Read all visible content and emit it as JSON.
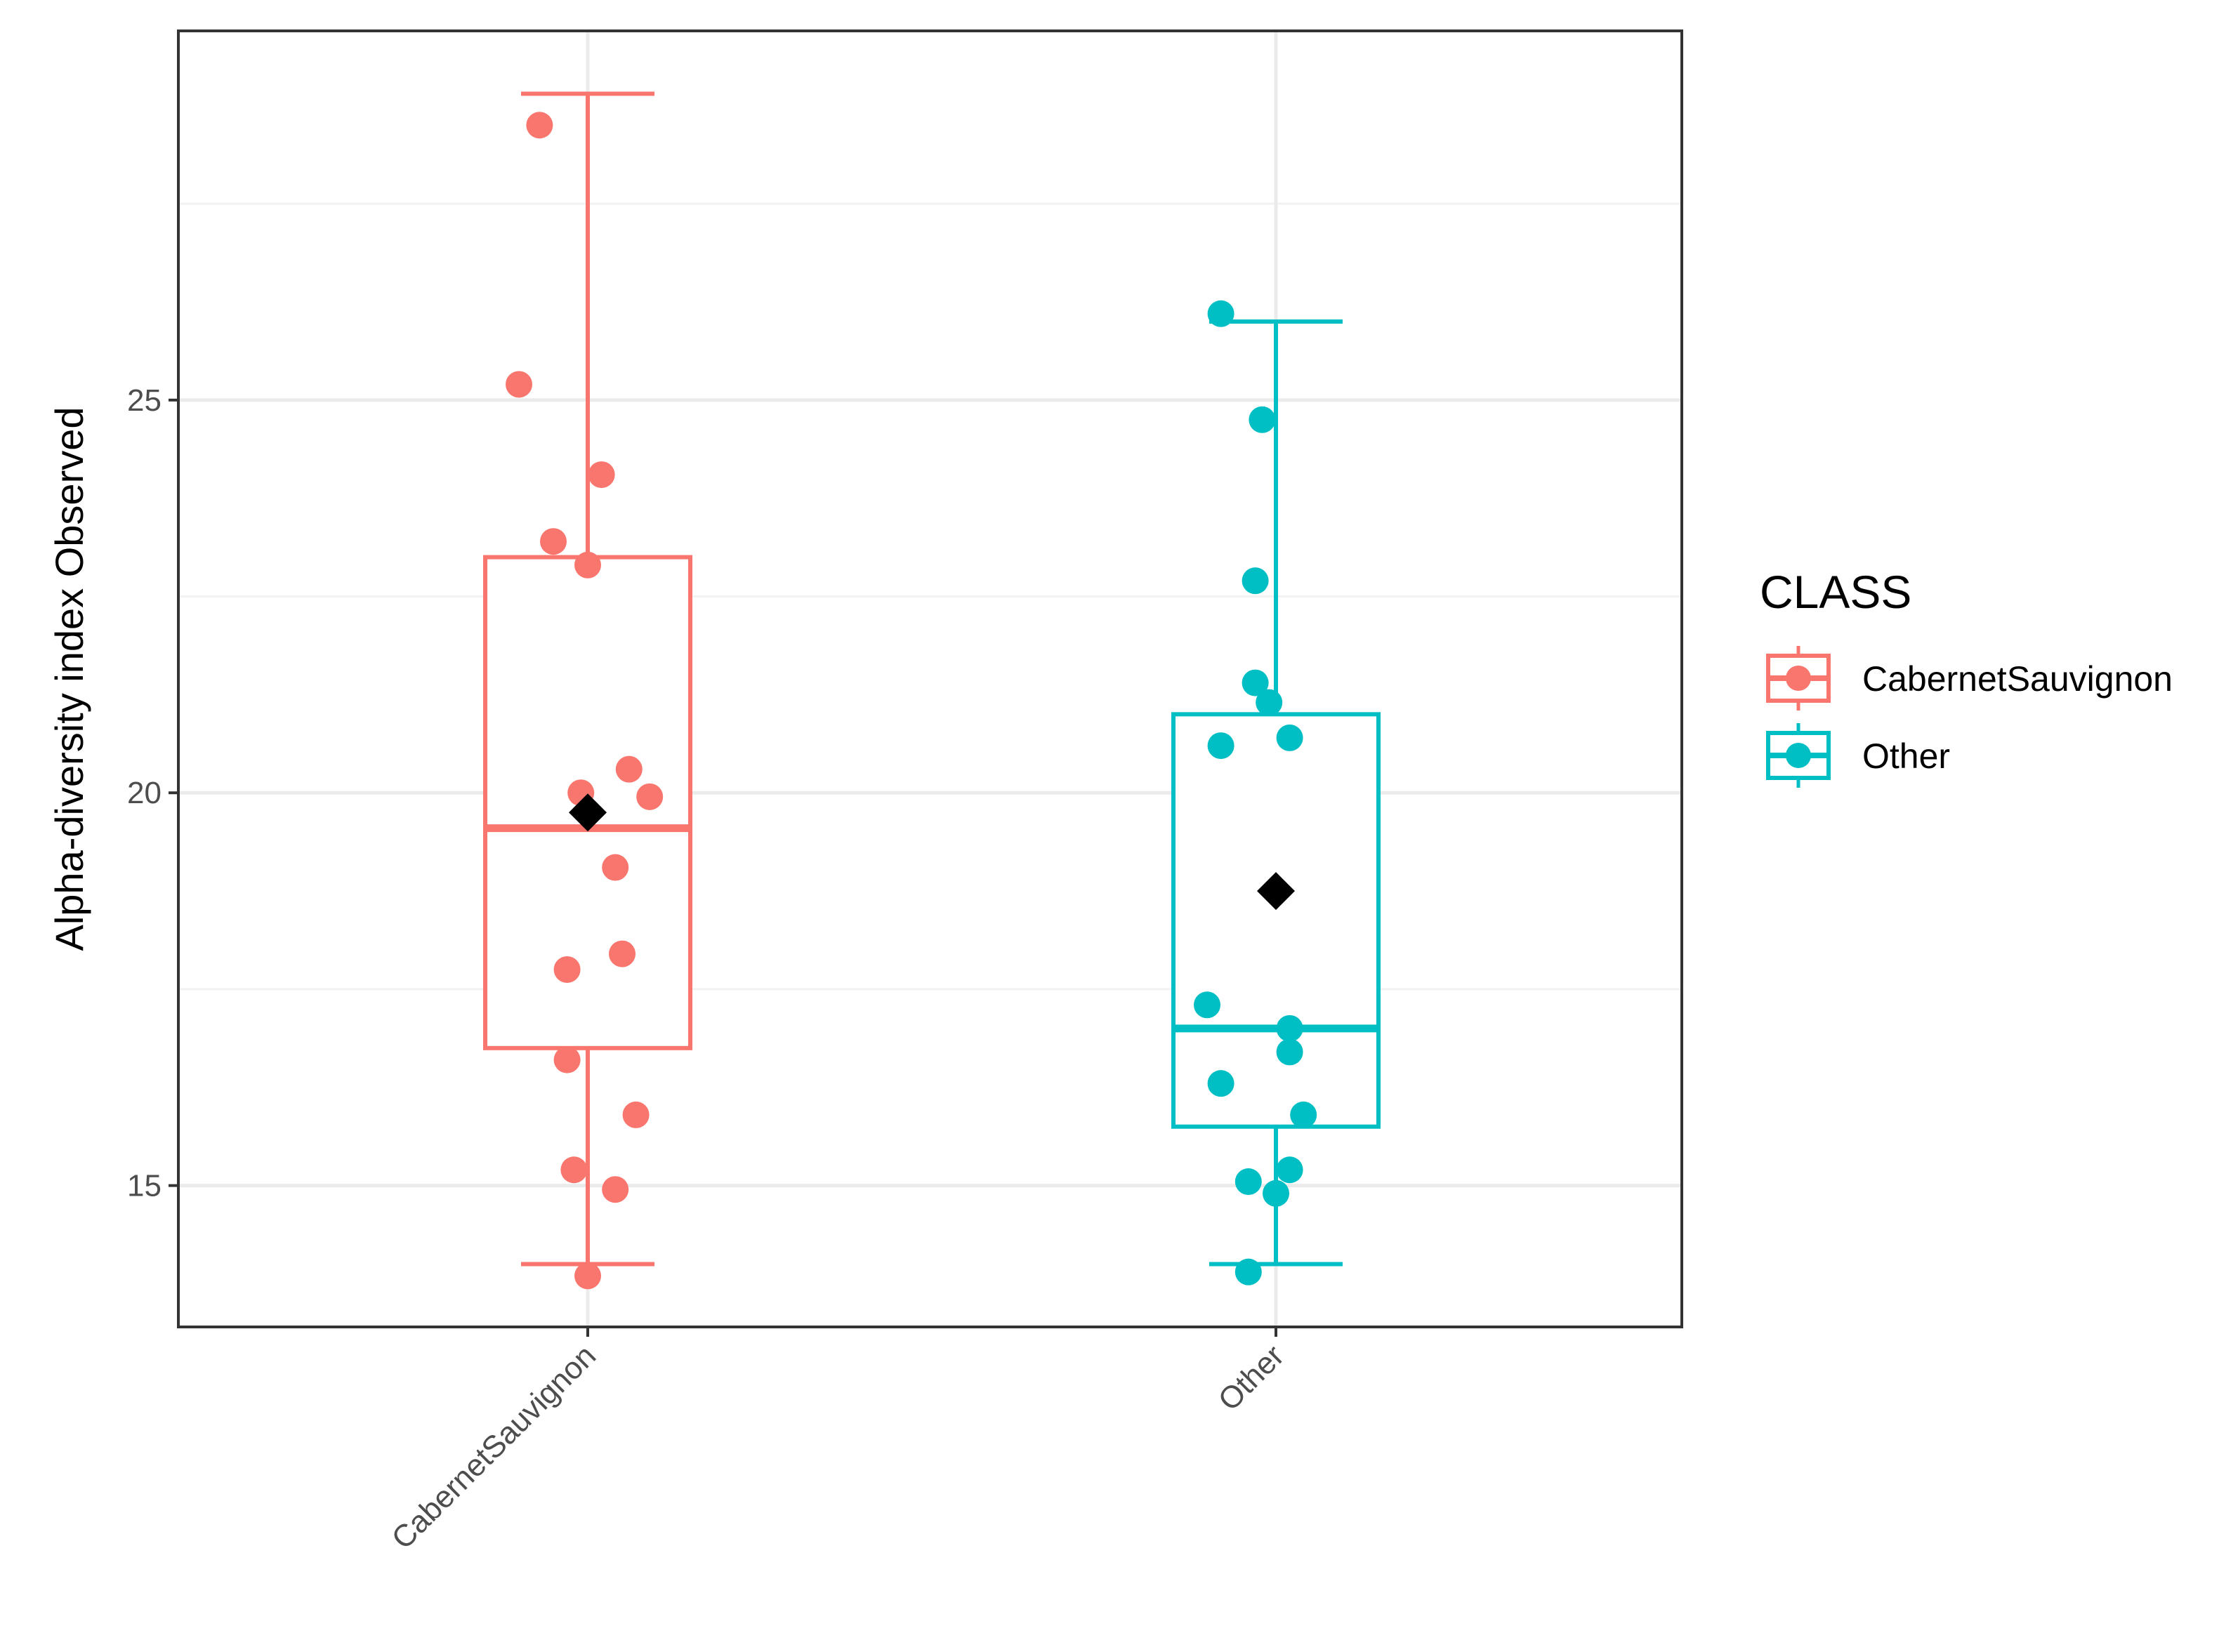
{
  "chart_data": {
    "type": "box",
    "title": "",
    "xlabel": "",
    "ylabel": "Alpha-diversity index Observed",
    "ylim": [
      13.2,
      29.7
    ],
    "yticks": [
      15,
      20,
      25
    ],
    "ytick_labels": [
      "15",
      "20",
      "25"
    ],
    "categories": [
      "CabernetSauvignon",
      "Other"
    ],
    "grid": true,
    "legend": {
      "title": "CLASS",
      "placement": "right",
      "entries": [
        "CabernetSauvignon",
        "Other"
      ]
    },
    "series": [
      {
        "name": "CabernetSauvignon",
        "color": "#F8766D",
        "whisker_low": 14.0,
        "q1": 16.75,
        "median": 19.55,
        "q3": 23.0,
        "whisker_high": 28.9,
        "mean": 19.75,
        "points": [
          {
            "jitter": -0.07,
            "y": 28.5
          },
          {
            "jitter": -0.1,
            "y": 25.2
          },
          {
            "jitter": 0.02,
            "y": 24.05
          },
          {
            "jitter": -0.05,
            "y": 23.2
          },
          {
            "jitter": 0.0,
            "y": 22.9
          },
          {
            "jitter": 0.06,
            "y": 20.3
          },
          {
            "jitter": -0.01,
            "y": 20.0
          },
          {
            "jitter": 0.09,
            "y": 19.95
          },
          {
            "jitter": 0.04,
            "y": 19.05
          },
          {
            "jitter": 0.05,
            "y": 17.95
          },
          {
            "jitter": -0.03,
            "y": 17.75
          },
          {
            "jitter": -0.03,
            "y": 16.6
          },
          {
            "jitter": 0.07,
            "y": 15.9
          },
          {
            "jitter": -0.02,
            "y": 15.2
          },
          {
            "jitter": 0.04,
            "y": 14.95
          },
          {
            "jitter": 0.0,
            "y": 13.85
          }
        ]
      },
      {
        "name": "Other",
        "color": "#00BFC4",
        "whisker_low": 14.0,
        "q1": 15.75,
        "median": 17.0,
        "q3": 21.0,
        "whisker_high": 26.0,
        "mean": 18.75,
        "points": [
          {
            "jitter": -0.08,
            "y": 26.1
          },
          {
            "jitter": -0.02,
            "y": 24.75
          },
          {
            "jitter": -0.03,
            "y": 22.7
          },
          {
            "jitter": -0.03,
            "y": 21.4
          },
          {
            "jitter": -0.01,
            "y": 21.15
          },
          {
            "jitter": 0.02,
            "y": 20.7
          },
          {
            "jitter": -0.08,
            "y": 20.6
          },
          {
            "jitter": -0.1,
            "y": 17.3
          },
          {
            "jitter": 0.02,
            "y": 17.0
          },
          {
            "jitter": 0.02,
            "y": 16.7
          },
          {
            "jitter": -0.08,
            "y": 16.3
          },
          {
            "jitter": 0.04,
            "y": 15.9
          },
          {
            "jitter": 0.02,
            "y": 15.2
          },
          {
            "jitter": -0.04,
            "y": 15.05
          },
          {
            "jitter": 0.0,
            "y": 14.9
          },
          {
            "jitter": -0.04,
            "y": 13.9
          }
        ]
      }
    ]
  }
}
